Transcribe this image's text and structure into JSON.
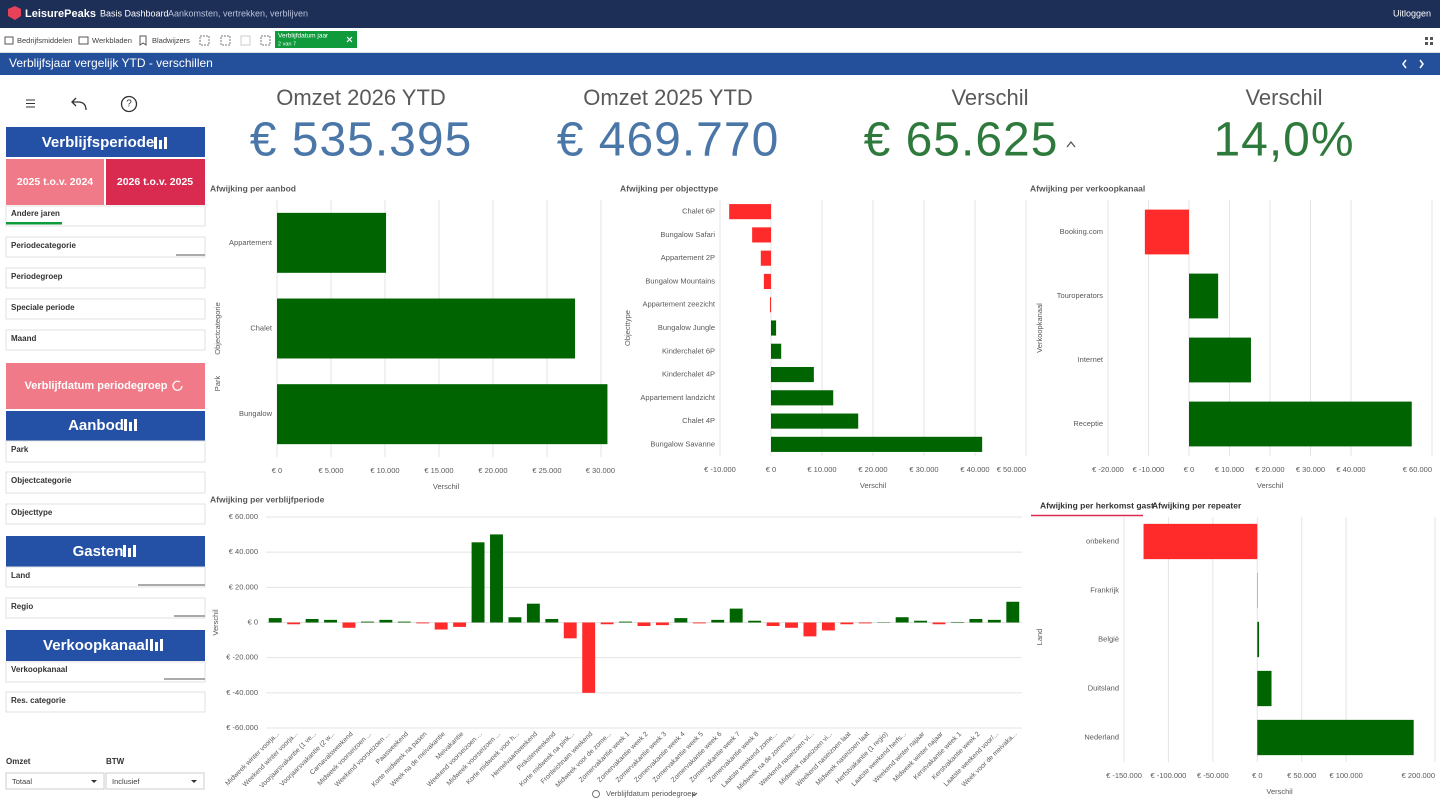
{
  "header": {
    "logo": "LeisurePeaks",
    "app": "Basis Dashboard",
    "subtitle": "Aankomsten, vertrekken, verblijven",
    "logout": "Uitloggen"
  },
  "toolbar": {
    "assets": "Bedrijfsmiddelen",
    "sheets": "Werkbladen",
    "bookmarks": "Bladwijzers",
    "selection_field": "Verblijfdatum jaar",
    "selection_count": "2 van 7"
  },
  "sheet_title": "Verblijfsjaar vergelijk YTD - verschillen",
  "sidebar": {
    "period_button": "Verblijfsperiode",
    "compare_buttons": [
      "2025 t.o.v. 2024",
      "2026 t.o.v. 2025"
    ],
    "period_filters": [
      "Andere jaren",
      "Periodecategorie",
      "Periodegroep",
      "Speciale periode",
      "Maand"
    ],
    "group_button": "Verblijfdatum periodegroep",
    "offer_button": "Aanbod",
    "offer_filters": [
      "Park",
      "Objectcategorie",
      "Objecttype"
    ],
    "guests_button": "Gasten",
    "guest_filters": [
      "Land",
      "Regio"
    ],
    "channel_button": "Verkoopkanaal",
    "channel_filters": [
      "Verkoopkanaal",
      "Res. categorie"
    ],
    "revenue_label": "Omzet",
    "revenue_value": "Totaal",
    "vat_label": "BTW",
    "vat_value": "Inclusief"
  },
  "kpis": [
    {
      "label": "Omzet 2026 YTD",
      "value": "€ 535.395"
    },
    {
      "label": "Omzet 2025 YTD",
      "value": "€ 469.770"
    },
    {
      "label": "Verschil",
      "value": "€ 65.625"
    },
    {
      "label": "Verschil",
      "value": "14,0%"
    }
  ],
  "tabs": [
    "Afwijking per herkomst gast",
    "Afwijking per repeater"
  ],
  "period_dropdown": "Verblijfdatum periodegroep",
  "chart_data": [
    {
      "type": "hbar",
      "title": "Afwijking per aanbod",
      "x_label": "Verschil",
      "drill_path": "Park",
      "y_label": "Objectcategorie",
      "color": "#006400",
      "negative_color": "#ff2b2b",
      "categories": [
        "Appartement",
        "Chalet",
        "Bungalow"
      ],
      "values": [
        10100,
        27600,
        30600
      ],
      "xlim": [
        0,
        31300
      ],
      "xticks": [
        {
          "value": 0,
          "label": "€ 0"
        },
        {
          "value": 5000,
          "label": "€ 5.000"
        },
        {
          "value": 10000,
          "label": "€ 10.000"
        },
        {
          "value": 15000,
          "label": "€ 15.000"
        },
        {
          "value": 20000,
          "label": "€ 20.000"
        },
        {
          "value": 25000,
          "label": "€ 25.000"
        },
        {
          "value": 30000,
          "label": "€ 30.000"
        }
      ]
    },
    {
      "type": "hbar",
      "title": "Afwijking per objecttype",
      "x_label": "Verschil",
      "y_label": "Objecttype",
      "color": "#006400",
      "negative_color": "#ff2b2b",
      "categories": [
        "Chalet 6P",
        "Bungalow Safari",
        "Appartement 2P",
        "Bungalow Mountains",
        "Appartement zeezicht",
        "Bungalow Jungle",
        "Kinderchalet 6P",
        "Kinderchalet 4P",
        "Appartement landzicht",
        "Chalet 4P",
        "Bungalow Savanne"
      ],
      "values": [
        -8200,
        -3700,
        -2000,
        -1400,
        -200,
        1000,
        2000,
        8400,
        12200,
        17100,
        41400
      ],
      "xlim": [
        -10000,
        50000
      ],
      "xticks": [
        {
          "value": -10000,
          "label": "€ -10.000"
        },
        {
          "value": 0,
          "label": "€ 0"
        },
        {
          "value": 10000,
          "label": "€ 10.000"
        },
        {
          "value": 20000,
          "label": "€ 20.000"
        },
        {
          "value": 30000,
          "label": "€ 30.000"
        },
        {
          "value": 40000,
          "label": "€ 40.000"
        },
        {
          "value": 50000,
          "label": "€ 50.000"
        }
      ]
    },
    {
      "type": "hbar",
      "title": "Afwijking per verkoopkanaal",
      "x_label": "Verschil",
      "y_label": "Verkoopkanaal",
      "color": "#006400",
      "negative_color": "#ff2b2b",
      "categories": [
        "Booking.com",
        "Touroperators",
        "Internet",
        "Receptie"
      ],
      "values": [
        -10900,
        7200,
        15300,
        55000
      ],
      "xlim": [
        -20000,
        60000
      ],
      "xticks": [
        {
          "value": -20000,
          "label": "€ -20.000"
        },
        {
          "value": -10000,
          "label": "€ -10.000"
        },
        {
          "value": 0,
          "label": "€ 0"
        },
        {
          "value": 10000,
          "label": "€ 10.000"
        },
        {
          "value": 20000,
          "label": "€ 20.000"
        },
        {
          "value": 30000,
          "label": "€ 30.000"
        },
        {
          "value": 40000,
          "label": "€ 40.000"
        },
        {
          "value": 60000,
          "label": "€ 60.000"
        }
      ]
    },
    {
      "type": "vbar",
      "title": "Afwijking per verblijfperiode",
      "y_label": "Verschil",
      "color": "#006400",
      "negative_color": "#ff2b2b",
      "categories": [
        "Midweek winter voorja...",
        "Weekend winter voorja...",
        "Voorjaarsvakantie (1 ve...",
        "Voorjaarsvakantie (2 w...",
        "Carnavalsweekend",
        "Midweek voorseizoen ...",
        "Weekend voorseizoen ...",
        "Paasweekend",
        "Korte midweek na pasen",
        "Week na de meivakantie",
        "Meivakantie",
        "Weekend voorseizoen ...",
        "Midweek voorseizoen ...",
        "Korte midweek voor h...",
        "Hemelvaartweekend",
        "Pinksterweekend",
        "Korte midweek na pink...",
        "Fronleichnam weekend",
        "Midweek voor de zome...",
        "Zomervakantie week 1",
        "Zomervakantie week 2",
        "Zomervakantie week 3",
        "Zomervakantie week 4",
        "Zomervakantie week 5",
        "Zomervakantie week 6",
        "Zomervakantie week 7",
        "Zomervakantie week 8",
        "Laatste weekend zome...",
        "Midweek na de zomerva...",
        "Weekend naseizoen vi...",
        "Midweek naseizoen vi...",
        "Weekend naseizoen laat",
        "Midweek naseizoen laat",
        "Herfstvakantie (1 regio)",
        "Laatste weekend herfs...",
        "Weekend winter najaar",
        "Midweek winter najaar",
        "Kerstvakantie week 1",
        "Kerstvakantie week 2",
        "Laatste weekend voor/...",
        "Week voor de meivaka..."
      ],
      "values": [
        2500,
        -1000,
        2000,
        1500,
        -3000,
        500,
        1500,
        500,
        -500,
        -4000,
        -2500,
        45600,
        50100,
        3000,
        10700,
        2000,
        -9000,
        -40000,
        -1000,
        500,
        -2000,
        -1500,
        2500,
        -500,
        1500,
        7900,
        1000,
        -2000,
        -3000,
        -7900,
        -4500,
        -1000,
        -500,
        200,
        3000,
        1000,
        -1000,
        300,
        2000,
        1500,
        11800
      ],
      "ylim": [
        -60000,
        60000
      ],
      "yticks": [
        {
          "value": -60000,
          "label": "€ -60.000"
        },
        {
          "value": -40000,
          "label": "€ -40.000"
        },
        {
          "value": -20000,
          "label": "€ -20.000"
        },
        {
          "value": 0,
          "label": "€ 0"
        },
        {
          "value": 20000,
          "label": "€ 20.000"
        },
        {
          "value": 40000,
          "label": "€ 40.000"
        },
        {
          "value": 60000,
          "label": "€ 60.000"
        }
      ]
    },
    {
      "type": "hbar",
      "x_label": "Verschil",
      "y_label": "Land",
      "color": "#006400",
      "negative_color": "#ff2b2b",
      "categories": [
        "onbekend",
        "Frankrijk",
        "België",
        "Duitsland",
        "Nederland"
      ],
      "values": [
        -128000,
        300,
        2000,
        16000,
        176000
      ],
      "xlim": [
        -150000,
        200000
      ],
      "xticks": [
        {
          "value": -150000,
          "label": "€ -150.000"
        },
        {
          "value": -100000,
          "label": "€ -100.000"
        },
        {
          "value": -50000,
          "label": "€ -50.000"
        },
        {
          "value": 0,
          "label": "€ 0"
        },
        {
          "value": 50000,
          "label": "€ 50.000"
        },
        {
          "value": 100000,
          "label": "€ 100.000"
        },
        {
          "value": 200000,
          "label": "€ 200.000"
        }
      ]
    }
  ]
}
